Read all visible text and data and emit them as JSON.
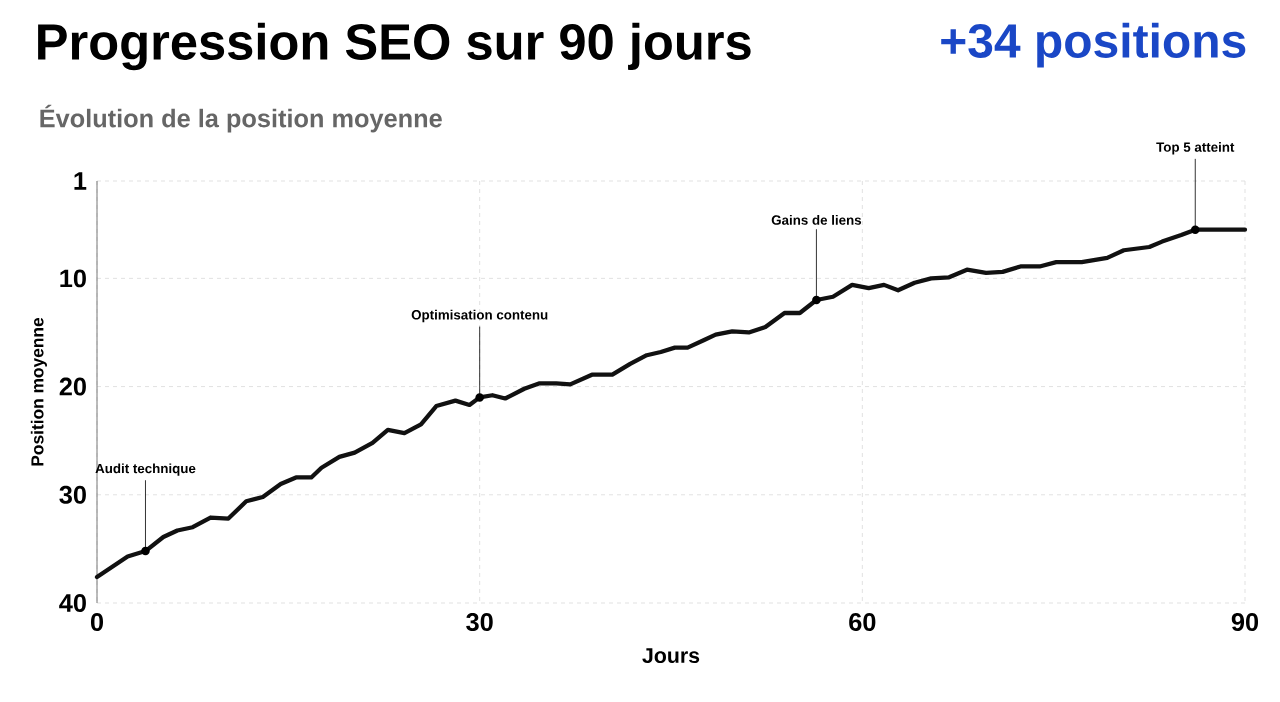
{
  "chart_data": {
    "type": "line",
    "title": "Progression SEO sur 90 jours",
    "subtitle": "Évolution de la position moyenne",
    "xlabel": "Jours",
    "ylabel": "Position moyenne",
    "x": [
      0,
      2.4,
      3.8,
      5.2,
      6.3,
      7.5,
      8.9,
      10.3,
      11.7,
      13.0,
      14.4,
      15.6,
      16.8,
      17.6,
      19.0,
      20.2,
      21.6,
      22.8,
      24.1,
      25.4,
      26.6,
      28.1,
      29.2,
      30.0,
      31.0,
      32.0,
      33.5,
      34.7,
      36.0,
      37.1,
      38.8,
      40.4,
      41.8,
      43.1,
      44.2,
      45.3,
      46.3,
      47.6,
      48.5,
      49.8,
      51.1,
      52.4,
      53.9,
      55.1,
      56.4,
      57.7,
      59.2,
      60.5,
      61.7,
      62.8,
      64.1,
      65.4,
      66.8,
      68.2,
      69.7,
      71.0,
      72.4,
      73.9,
      75.2,
      77.2,
      79.2,
      80.5,
      82.5,
      83.5,
      85.0,
      86.1,
      87.4,
      90.0
    ],
    "series": [
      {
        "color": "#111111",
        "values": [
          37.6,
          35.7,
          35.2,
          33.9,
          33.3,
          33.0,
          32.1,
          32.2,
          30.6,
          30.2,
          29.0,
          28.4,
          28.4,
          27.5,
          26.5,
          26.1,
          25.2,
          24.0,
          24.3,
          23.5,
          21.8,
          21.3,
          21.7,
          21.0,
          20.8,
          21.1,
          20.2,
          19.7,
          19.7,
          19.8,
          18.9,
          18.9,
          17.9,
          17.1,
          16.8,
          16.4,
          16.4,
          15.7,
          15.2,
          14.9,
          15.0,
          14.5,
          13.2,
          13.2,
          12.0,
          11.7,
          10.6,
          10.9,
          10.6,
          11.1,
          10.4,
          10.0,
          9.9,
          9.2,
          9.5,
          9.4,
          8.9,
          8.9,
          8.5,
          8.5,
          8.1,
          7.4,
          7.1,
          6.6,
          6.0,
          5.5,
          5.5,
          5.5
        ]
      }
    ],
    "xlim": [
      0,
      90
    ],
    "ylim": [
      40,
      1
    ],
    "xticks": [
      0,
      30,
      60,
      90
    ],
    "yticks": [
      1,
      10,
      20,
      30,
      40
    ],
    "grid": true,
    "annotations": [
      "+34 positions",
      {
        "text": "Audit technique",
        "x": 3.8,
        "y": 35.2
      },
      {
        "text": "Optimisation contenu",
        "x": 30.0,
        "y": 21.0
      },
      {
        "text": "Gains de liens",
        "x": 56.4,
        "y": 12.0
      },
      {
        "text": "Top 5 atteint",
        "x": 86.1,
        "y": 5.5
      }
    ]
  }
}
